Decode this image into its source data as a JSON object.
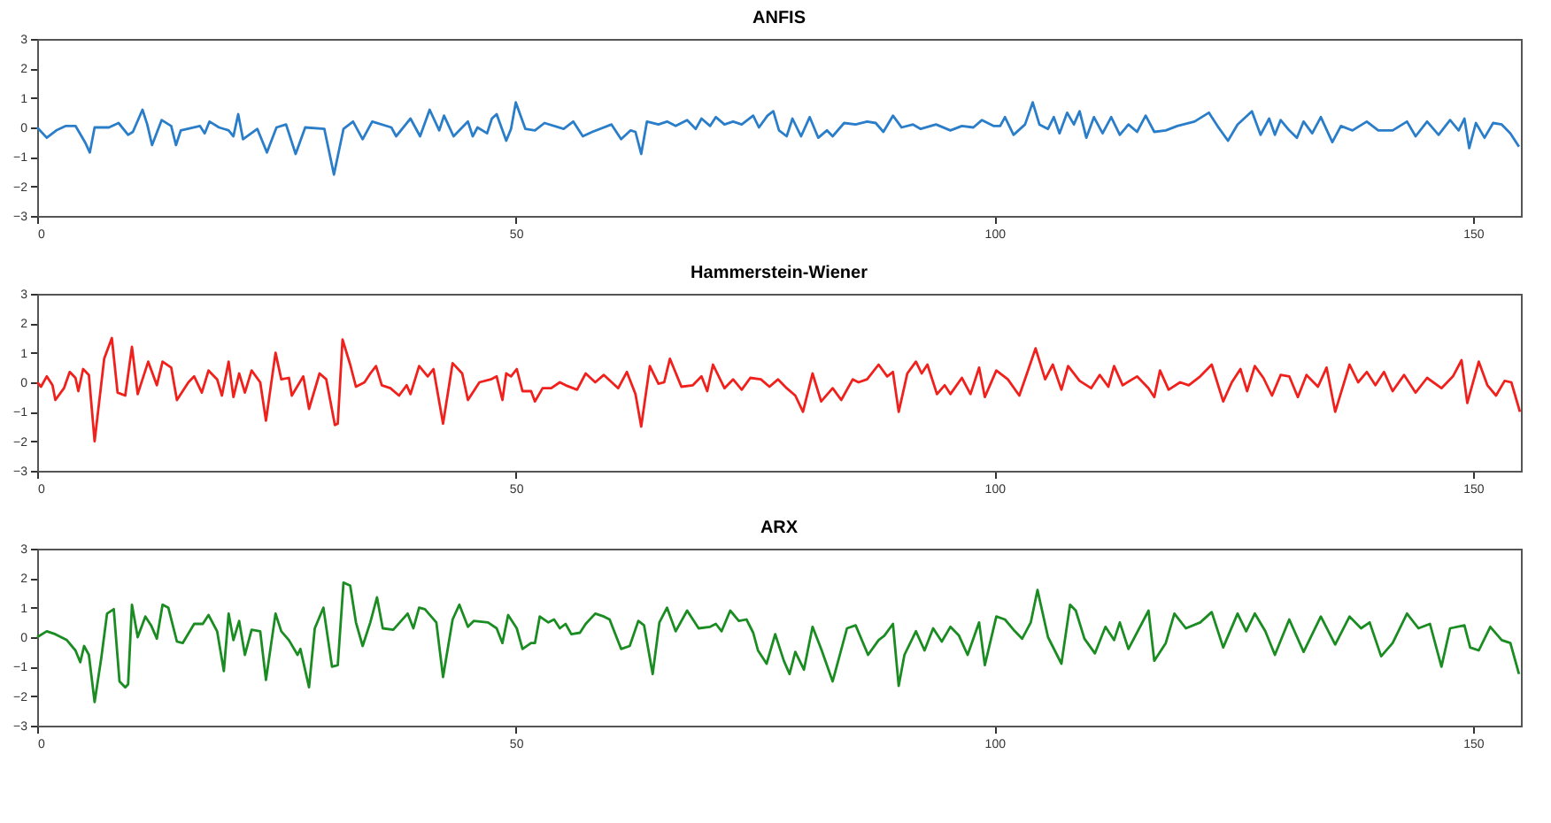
{
  "chart_data": [
    {
      "type": "line",
      "title": "ANFIS",
      "xlim": [
        0,
        155
      ],
      "xticks": [
        0,
        50,
        100,
        150
      ],
      "ylim": [
        -3,
        3
      ],
      "yticks": [
        -3,
        -2,
        -1,
        0,
        1,
        2,
        3
      ],
      "grid": false,
      "marker": "none",
      "line_style": "solid",
      "series": [
        {
          "color": "#2a7dc8",
          "x": [
            0,
            1,
            2,
            3,
            4,
            5,
            5.5,
            6,
            7.5,
            8.5,
            9.5,
            10,
            11,
            11.5,
            12,
            13,
            14,
            14.5,
            15,
            17,
            17.5,
            18,
            19,
            20,
            20.5,
            21,
            21.5,
            23,
            24,
            25,
            26,
            27,
            28,
            30,
            31,
            32,
            33,
            34,
            35,
            37,
            37.5,
            38.5,
            39,
            40,
            41,
            42,
            42.5,
            43.5,
            45,
            45.5,
            46,
            47,
            47.5,
            48,
            49,
            49.5,
            50,
            51,
            52,
            53,
            55,
            56,
            57,
            58,
            60,
            61,
            62,
            62.5,
            63.1,
            63.7,
            64.9,
            65.8,
            66.7,
            67.9,
            68.8,
            69.4,
            70.3,
            70.9,
            71.8,
            72.7,
            73.6,
            74.8,
            75.4,
            76.3,
            76.9,
            77.5,
            78.3,
            78.9,
            79.8,
            80.7,
            81.6,
            82.5,
            83.1,
            84.3,
            85.5,
            86.7,
            87.6,
            88.4,
            89.4,
            90.3,
            91.5,
            92.3,
            93.9,
            95.4,
            96.6,
            97.8,
            98.7,
            99.9,
            100.6,
            101.1,
            102,
            103.2,
            104,
            104.7,
            105.6,
            106.2,
            106.8,
            107.6,
            108.3,
            108.9,
            109.6,
            110.4,
            111.3,
            112.2,
            113.1,
            114,
            114.9,
            115.8,
            116.7,
            117.9,
            119.1,
            120.9,
            122.4,
            123.3,
            124.4,
            125.4,
            126.9,
            127.8,
            128.7,
            129.3,
            129.9,
            130.8,
            131.6,
            132.3,
            133.2,
            134.1,
            135.3,
            136.2,
            137.4,
            138.9,
            140.1,
            141.6,
            143.1,
            144,
            145.2,
            146.4,
            147.6,
            148.5,
            149.1,
            149.6,
            150.3,
            151.2,
            152.1,
            153,
            153.9,
            154.8
          ],
          "values": [
            0,
            -0.35,
            -0.1,
            0.05,
            0.05,
            -0.5,
            -0.85,
            0,
            0,
            0.15,
            -0.25,
            -0.15,
            0.6,
            0.1,
            -0.6,
            0.25,
            0.05,
            -0.6,
            -0.1,
            0.05,
            -0.2,
            0.2,
            0,
            -0.1,
            -0.3,
            0.45,
            -0.4,
            -0.05,
            -0.85,
            0,
            0.1,
            -0.9,
            0,
            -0.05,
            -1.6,
            -0.05,
            0.2,
            -0.4,
            0.2,
            0,
            -0.3,
            0.1,
            0.3,
            -0.3,
            0.6,
            -0.1,
            0.4,
            -0.3,
            0.2,
            -0.3,
            0,
            -0.2,
            0.3,
            0.45,
            -0.45,
            -0.05,
            0.85,
            -0.05,
            -0.1,
            0.15,
            -0.05,
            0.2,
            -0.3,
            -0.15,
            0.1,
            -0.4,
            -0.1,
            -0.15,
            -0.9,
            0.2,
            0.1,
            0.2,
            0.05,
            0.25,
            -0.05,
            0.3,
            0.05,
            0.35,
            0.1,
            0.2,
            0.1,
            0.4,
            0,
            0.4,
            0.55,
            -0.1,
            -0.3,
            0.3,
            -0.3,
            0.35,
            -0.35,
            -0.1,
            -0.3,
            0.15,
            0.1,
            0.2,
            0.15,
            -0.15,
            0.4,
            0,
            0.1,
            -0.05,
            0.1,
            -0.1,
            0.05,
            0,
            0.25,
            0.05,
            0.05,
            0.35,
            -0.25,
            0.1,
            0.85,
            0.1,
            -0.05,
            0.35,
            -0.2,
            0.5,
            0.1,
            0.55,
            -0.35,
            0.35,
            -0.2,
            0.35,
            -0.25,
            0.1,
            -0.15,
            0.4,
            -0.15,
            -0.1,
            0.05,
            0.2,
            0.5,
            0.05,
            -0.45,
            0.1,
            0.55,
            -0.25,
            0.3,
            -0.25,
            0.25,
            -0.1,
            -0.35,
            0.2,
            -0.2,
            0.35,
            -0.5,
            0.05,
            -0.1,
            0.2,
            -0.1,
            -0.1,
            0.2,
            -0.3,
            0.2,
            -0.25,
            0.25,
            -0.1,
            0.3,
            -0.7,
            0.15,
            -0.35,
            0.15,
            0.1,
            -0.2,
            -0.65
          ]
        }
      ]
    },
    {
      "type": "line",
      "title": "Hammerstein-Wiener",
      "xlim": [
        0,
        155
      ],
      "xticks": [
        0,
        50,
        100,
        150
      ],
      "ylim": [
        -3,
        3
      ],
      "yticks": [
        -3,
        -2,
        -1,
        0,
        1,
        2,
        3
      ],
      "grid": false,
      "marker": "none",
      "line_style": "solid",
      "series": [
        {
          "color": "#f0201c",
          "x": [
            0,
            0.4,
            1,
            1.6,
            1.9,
            2.8,
            3.4,
            4,
            4.3,
            4.8,
            5.4,
            6,
            7,
            7.8,
            8.4,
            9.2,
            9.9,
            10.5,
            11.6,
            12.5,
            13.1,
            14,
            14.6,
            15.8,
            16.4,
            17.2,
            17.9,
            18.8,
            19.3,
            20,
            20.5,
            21.1,
            21.7,
            22.4,
            23.3,
            23.9,
            24.9,
            25.5,
            26.3,
            26.6,
            27.8,
            28.4,
            29.5,
            30.2,
            31.1,
            31.4,
            31.9,
            32.7,
            33.3,
            34.2,
            34.8,
            35.4,
            36,
            36.9,
            37.8,
            38.6,
            39,
            39.9,
            40.8,
            41.4,
            42.4,
            43.4,
            44.4,
            45,
            46.2,
            47.4,
            48,
            48.6,
            49,
            49.5,
            50.1,
            50.7,
            51.6,
            52,
            52.8,
            53.7,
            54.6,
            55.2,
            56.4,
            57.3,
            58.3,
            59.2,
            60.7,
            61.6,
            62.5,
            63.1,
            64,
            64.9,
            65.5,
            66.1,
            67.3,
            68.5,
            69.4,
            70,
            70.6,
            71.8,
            72.7,
            73.6,
            74.5,
            75.6,
            76.5,
            77.4,
            78.3,
            79.2,
            80,
            81,
            81.9,
            83.1,
            84,
            85.2,
            85.8,
            86.7,
            87.9,
            88.8,
            89.4,
            90,
            90.9,
            91.8,
            92.4,
            93,
            94,
            94.8,
            95.4,
            96.6,
            97.5,
            98.4,
            99,
            100.2,
            101.4,
            102.6,
            103.4,
            104.3,
            105.3,
            106.1,
            107,
            107.7,
            108.9,
            110.1,
            111,
            111.9,
            112.5,
            113.4,
            114.9,
            116.1,
            116.7,
            117.3,
            118.2,
            119.4,
            120.3,
            121.5,
            122.7,
            123.9,
            124.8,
            125.7,
            126.4,
            127.2,
            128.1,
            129,
            129.9,
            130.8,
            131.7,
            132.6,
            133.8,
            134.7,
            135.6,
            137.1,
            138,
            138.9,
            139.8,
            140.7,
            141.6,
            142.8,
            144,
            145.2,
            146.7,
            147.9,
            148.8,
            149.4,
            150.6,
            151.5,
            152.4,
            153.3,
            154,
            154.9
          ],
          "values": [
            0,
            -0.15,
            0.2,
            -0.1,
            -0.6,
            -0.2,
            0.35,
            0.15,
            -0.3,
            0.45,
            0.25,
            -2,
            0.8,
            1.5,
            -0.35,
            -0.45,
            1.2,
            -0.4,
            0.7,
            -0.1,
            0.7,
            0.5,
            -0.6,
            0,
            0.2,
            -0.35,
            0.4,
            0.1,
            -0.45,
            0.7,
            -0.5,
            0.3,
            -0.35,
            0.4,
            0,
            -1.3,
            1,
            0.1,
            0.15,
            -0.45,
            0.2,
            -0.9,
            0.3,
            0.1,
            -1.45,
            -1.4,
            1.45,
            0.6,
            -0.15,
            0,
            0.3,
            0.55,
            -0.1,
            -0.2,
            -0.45,
            -0.1,
            -0.4,
            0.55,
            0.2,
            0.45,
            -1.4,
            0.65,
            0.3,
            -0.6,
            0,
            0.1,
            0.2,
            -0.6,
            0.3,
            0.2,
            0.45,
            -0.3,
            -0.3,
            -0.65,
            -0.2,
            -0.2,
            0,
            -0.1,
            -0.25,
            0.3,
            0,
            0.25,
            -0.2,
            0.35,
            -0.4,
            -1.5,
            0.55,
            -0.05,
            0,
            0.8,
            -0.15,
            -0.1,
            0.2,
            -0.3,
            0.6,
            -0.2,
            0.1,
            -0.25,
            0.15,
            0.1,
            -0.15,
            0.1,
            -0.2,
            -0.45,
            -1,
            0.3,
            -0.65,
            -0.2,
            -0.6,
            0.1,
            0,
            0.1,
            0.6,
            0.2,
            0.35,
            -1,
            0.3,
            0.7,
            0.3,
            0.6,
            -0.4,
            -0.1,
            -0.4,
            0.15,
            -0.4,
            0.5,
            -0.5,
            0.4,
            0.1,
            -0.45,
            0.3,
            1.15,
            0.1,
            0.6,
            -0.25,
            0.55,
            0.05,
            -0.2,
            0.25,
            -0.15,
            0.55,
            -0.1,
            0.2,
            -0.2,
            -0.5,
            0.4,
            -0.25,
            0,
            -0.1,
            0.2,
            0.6,
            -0.65,
            0,
            0.45,
            -0.3,
            0.55,
            0.15,
            -0.45,
            0.25,
            0.2,
            -0.5,
            0.25,
            -0.15,
            0.5,
            -1,
            0.6,
            0,
            0.35,
            -0.1,
            0.35,
            -0.3,
            0.25,
            -0.35,
            0.15,
            -0.2,
            0.2,
            0.75,
            -0.7,
            0.7,
            -0.1,
            -0.45,
            0.05,
            0,
            -1
          ]
        }
      ]
    },
    {
      "type": "line",
      "title": "ARX",
      "xlim": [
        0,
        155
      ],
      "xticks": [
        0,
        50,
        100,
        150
      ],
      "ylim": [
        -3,
        3
      ],
      "yticks": [
        -3,
        -2,
        -1,
        0,
        1,
        2,
        3
      ],
      "grid": false,
      "marker": "none",
      "line_style": "solid",
      "series": [
        {
          "color": "#1a8c22",
          "x": [
            0,
            1,
            1.9,
            3.1,
            4,
            4.5,
            4.9,
            5.4,
            6,
            6.7,
            7.3,
            8,
            8.6,
            9.2,
            9.5,
            9.9,
            10.5,
            11.3,
            11.9,
            12.5,
            13.1,
            13.7,
            14.6,
            15.2,
            16.4,
            17.3,
            17.9,
            18.8,
            19.5,
            20,
            20.5,
            21.1,
            21.7,
            22.4,
            23.3,
            23.9,
            24.9,
            25.5,
            26.3,
            27.2,
            27.5,
            28.4,
            29,
            29.9,
            30.8,
            31.4,
            32,
            32.7,
            33.3,
            34,
            34.8,
            35.5,
            36.1,
            37.2,
            38.7,
            39.3,
            39.9,
            40.5,
            41.7,
            42.4,
            43.4,
            44.1,
            45,
            45.6,
            47.1,
            48,
            48.6,
            49.2,
            50.1,
            50.7,
            51.6,
            52,
            52.5,
            53.4,
            54,
            54.6,
            55.2,
            55.8,
            56.7,
            57.3,
            58.3,
            59.2,
            59.8,
            61,
            61.9,
            62.8,
            63.4,
            64.3,
            65,
            65.8,
            66.7,
            67.9,
            69.1,
            70.3,
            70.9,
            71.5,
            72.4,
            73.3,
            74.1,
            74.8,
            75.3,
            76.2,
            77.1,
            78,
            78.6,
            79.2,
            80.1,
            81,
            81.9,
            83.1,
            84.6,
            85.5,
            86.8,
            87.9,
            88.5,
            89.4,
            90,
            90.6,
            91.8,
            92.7,
            93.6,
            94.5,
            95.4,
            96.3,
            97.2,
            98.4,
            99,
            100.2,
            101.1,
            102,
            102.9,
            103.8,
            104.5,
            105.6,
            107,
            107.9,
            108.5,
            109.4,
            110.5,
            111.6,
            112.5,
            113.1,
            114,
            116.1,
            116.7,
            117.9,
            118.8,
            120,
            121.5,
            122.7,
            123.9,
            125.4,
            126.3,
            127.2,
            128.3,
            129.3,
            130.8,
            132.3,
            134.1,
            135.6,
            137.1,
            138.3,
            139.2,
            140.4,
            141.6,
            143.1,
            144.3,
            145.5,
            146.7,
            147.6,
            149.1,
            149.7,
            150.6,
            151.8,
            153,
            153.9,
            154.8
          ],
          "values": [
            0,
            0.2,
            0.1,
            -0.1,
            -0.45,
            -0.85,
            -0.3,
            -0.6,
            -2.2,
            -0.7,
            0.8,
            0.95,
            -1.5,
            -1.7,
            -1.6,
            1.1,
            0,
            0.7,
            0.4,
            -0.05,
            1.1,
            1,
            -0.15,
            -0.2,
            0.45,
            0.45,
            0.75,
            0.2,
            -1.15,
            0.8,
            -0.1,
            0.55,
            -0.6,
            0.25,
            0.2,
            -1.45,
            0.8,
            0.2,
            -0.1,
            -0.6,
            -0.4,
            -1.7,
            0.3,
            1,
            -1,
            -0.95,
            1.85,
            1.75,
            0.5,
            -0.3,
            0.5,
            1.35,
            0.3,
            0.25,
            0.8,
            0.3,
            1,
            0.95,
            0.5,
            -1.35,
            0.6,
            1.1,
            0.35,
            0.55,
            0.5,
            0.3,
            -0.2,
            0.75,
            0.3,
            -0.4,
            -0.2,
            -0.2,
            0.7,
            0.5,
            0.6,
            0.3,
            0.45,
            0.1,
            0.15,
            0.45,
            0.8,
            0.7,
            0.6,
            -0.4,
            -0.3,
            0.55,
            0.4,
            -1.25,
            0.5,
            1,
            0.2,
            0.9,
            0.3,
            0.35,
            0.45,
            0.2,
            0.9,
            0.55,
            0.6,
            0.15,
            -0.45,
            -0.9,
            0.1,
            -0.8,
            -1.25,
            -0.5,
            -1.1,
            0.35,
            -0.4,
            -1.5,
            0.3,
            0.4,
            -0.6,
            -0.1,
            0.05,
            0.45,
            -1.65,
            -0.6,
            0.2,
            -0.45,
            0.3,
            -0.15,
            0.35,
            0.05,
            -0.6,
            0.5,
            -0.95,
            0.7,
            0.6,
            0.25,
            -0.05,
            0.5,
            1.6,
            0,
            -0.9,
            1.1,
            0.9,
            -0.05,
            -0.55,
            0.35,
            -0.1,
            0.5,
            -0.4,
            0.9,
            -0.8,
            -0.2,
            0.8,
            0.3,
            0.5,
            0.85,
            -0.35,
            0.8,
            0.2,
            0.8,
            0.2,
            -0.6,
            0.6,
            -0.5,
            0.7,
            -0.25,
            0.7,
            0.3,
            0.5,
            -0.65,
            -0.2,
            0.8,
            0.3,
            0.45,
            -1,
            0.3,
            0.4,
            -0.35,
            -0.45,
            0.35,
            -0.1,
            -0.2,
            -1.25
          ]
        }
      ]
    }
  ]
}
